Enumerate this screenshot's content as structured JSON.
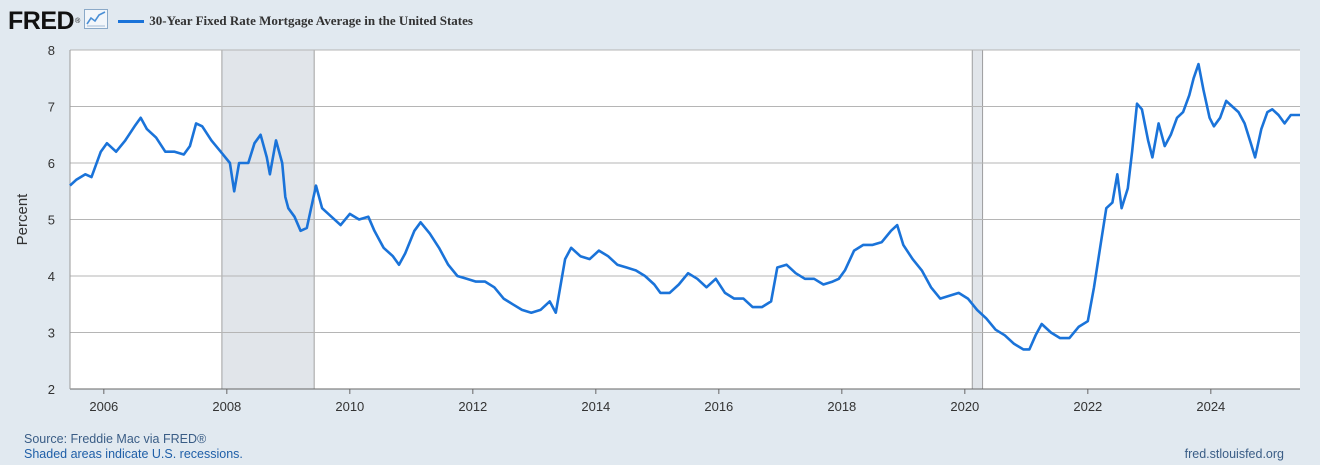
{
  "header": {
    "logo": "FRED",
    "logo_mark": "®",
    "logo_icon": "line-chart-icon"
  },
  "footer": {
    "source": "Source: Freddie Mac via FRED®",
    "recession_note": "Shaded areas indicate U.S. recessions.",
    "site": "fred.stlouisfed.org"
  },
  "colors": {
    "background": "#e1e9f0",
    "plot_bg": "#ffffff",
    "series": "#1a73d9",
    "recession": "#e1e5ea",
    "grid": "#b5b5b5"
  },
  "chart_data": {
    "type": "line",
    "title": "",
    "xlabel": "",
    "ylabel": "Percent",
    "xlim": [
      2005.45,
      2025.45
    ],
    "ylim": [
      2,
      8
    ],
    "y_ticks": [
      2,
      3,
      4,
      5,
      6,
      7,
      8
    ],
    "x_ticks": [
      "2006",
      "2008",
      "2010",
      "2012",
      "2014",
      "2016",
      "2018",
      "2020",
      "2022",
      "2024"
    ],
    "grid": "horizontal",
    "recessions": [
      [
        2007.92,
        2009.42
      ],
      [
        2020.12,
        2020.29
      ]
    ],
    "series": [
      {
        "name": "30-Year Fixed Rate Mortgage Average in the United States",
        "points": [
          [
            2005.45,
            5.6
          ],
          [
            2005.55,
            5.7
          ],
          [
            2005.7,
            5.8
          ],
          [
            2005.8,
            5.75
          ],
          [
            2005.95,
            6.2
          ],
          [
            2006.05,
            6.35
          ],
          [
            2006.2,
            6.2
          ],
          [
            2006.35,
            6.4
          ],
          [
            2006.5,
            6.65
          ],
          [
            2006.6,
            6.8
          ],
          [
            2006.7,
            6.6
          ],
          [
            2006.85,
            6.45
          ],
          [
            2007.0,
            6.2
          ],
          [
            2007.15,
            6.2
          ],
          [
            2007.3,
            6.15
          ],
          [
            2007.4,
            6.3
          ],
          [
            2007.5,
            6.7
          ],
          [
            2007.6,
            6.65
          ],
          [
            2007.75,
            6.4
          ],
          [
            2007.9,
            6.2
          ],
          [
            2008.05,
            6.0
          ],
          [
            2008.12,
            5.5
          ],
          [
            2008.2,
            6.0
          ],
          [
            2008.35,
            6.0
          ],
          [
            2008.45,
            6.35
          ],
          [
            2008.55,
            6.5
          ],
          [
            2008.65,
            6.1
          ],
          [
            2008.7,
            5.8
          ],
          [
            2008.8,
            6.4
          ],
          [
            2008.9,
            6.0
          ],
          [
            2008.95,
            5.4
          ],
          [
            2009.0,
            5.2
          ],
          [
            2009.1,
            5.05
          ],
          [
            2009.2,
            4.8
          ],
          [
            2009.3,
            4.85
          ],
          [
            2009.45,
            5.6
          ],
          [
            2009.55,
            5.2
          ],
          [
            2009.7,
            5.05
          ],
          [
            2009.85,
            4.9
          ],
          [
            2010.0,
            5.1
          ],
          [
            2010.15,
            5.0
          ],
          [
            2010.3,
            5.05
          ],
          [
            2010.4,
            4.8
          ],
          [
            2010.55,
            4.5
          ],
          [
            2010.7,
            4.35
          ],
          [
            2010.8,
            4.2
          ],
          [
            2010.9,
            4.4
          ],
          [
            2011.05,
            4.8
          ],
          [
            2011.15,
            4.95
          ],
          [
            2011.3,
            4.75
          ],
          [
            2011.45,
            4.5
          ],
          [
            2011.6,
            4.2
          ],
          [
            2011.75,
            4.0
          ],
          [
            2011.9,
            3.95
          ],
          [
            2012.05,
            3.9
          ],
          [
            2012.2,
            3.9
          ],
          [
            2012.35,
            3.8
          ],
          [
            2012.5,
            3.6
          ],
          [
            2012.65,
            3.5
          ],
          [
            2012.8,
            3.4
          ],
          [
            2012.95,
            3.35
          ],
          [
            2013.1,
            3.4
          ],
          [
            2013.25,
            3.55
          ],
          [
            2013.35,
            3.35
          ],
          [
            2013.5,
            4.3
          ],
          [
            2013.6,
            4.5
          ],
          [
            2013.75,
            4.35
          ],
          [
            2013.9,
            4.3
          ],
          [
            2014.05,
            4.45
          ],
          [
            2014.2,
            4.35
          ],
          [
            2014.35,
            4.2
          ],
          [
            2014.5,
            4.15
          ],
          [
            2014.65,
            4.1
          ],
          [
            2014.8,
            4.0
          ],
          [
            2014.95,
            3.85
          ],
          [
            2015.05,
            3.7
          ],
          [
            2015.2,
            3.7
          ],
          [
            2015.35,
            3.85
          ],
          [
            2015.5,
            4.05
          ],
          [
            2015.65,
            3.95
          ],
          [
            2015.8,
            3.8
          ],
          [
            2015.95,
            3.95
          ],
          [
            2016.1,
            3.7
          ],
          [
            2016.25,
            3.6
          ],
          [
            2016.4,
            3.6
          ],
          [
            2016.55,
            3.45
          ],
          [
            2016.7,
            3.45
          ],
          [
            2016.85,
            3.55
          ],
          [
            2016.95,
            4.15
          ],
          [
            2017.1,
            4.2
          ],
          [
            2017.25,
            4.05
          ],
          [
            2017.4,
            3.95
          ],
          [
            2017.55,
            3.95
          ],
          [
            2017.7,
            3.85
          ],
          [
            2017.85,
            3.9
          ],
          [
            2017.95,
            3.95
          ],
          [
            2018.05,
            4.1
          ],
          [
            2018.2,
            4.45
          ],
          [
            2018.35,
            4.55
          ],
          [
            2018.5,
            4.55
          ],
          [
            2018.65,
            4.6
          ],
          [
            2018.8,
            4.8
          ],
          [
            2018.9,
            4.9
          ],
          [
            2019.0,
            4.55
          ],
          [
            2019.15,
            4.3
          ],
          [
            2019.3,
            4.1
          ],
          [
            2019.45,
            3.8
          ],
          [
            2019.6,
            3.6
          ],
          [
            2019.75,
            3.65
          ],
          [
            2019.9,
            3.7
          ],
          [
            2020.05,
            3.6
          ],
          [
            2020.2,
            3.4
          ],
          [
            2020.35,
            3.25
          ],
          [
            2020.5,
            3.05
          ],
          [
            2020.65,
            2.95
          ],
          [
            2020.8,
            2.8
          ],
          [
            2020.95,
            2.7
          ],
          [
            2021.05,
            2.7
          ],
          [
            2021.15,
            2.95
          ],
          [
            2021.25,
            3.15
          ],
          [
            2021.4,
            3.0
          ],
          [
            2021.55,
            2.9
          ],
          [
            2021.7,
            2.9
          ],
          [
            2021.85,
            3.1
          ],
          [
            2022.0,
            3.2
          ],
          [
            2022.1,
            3.8
          ],
          [
            2022.2,
            4.5
          ],
          [
            2022.3,
            5.2
          ],
          [
            2022.4,
            5.3
          ],
          [
            2022.48,
            5.8
          ],
          [
            2022.55,
            5.2
          ],
          [
            2022.65,
            5.55
          ],
          [
            2022.72,
            6.2
          ],
          [
            2022.8,
            7.05
          ],
          [
            2022.88,
            6.95
          ],
          [
            2022.98,
            6.4
          ],
          [
            2023.05,
            6.1
          ],
          [
            2023.15,
            6.7
          ],
          [
            2023.25,
            6.3
          ],
          [
            2023.35,
            6.5
          ],
          [
            2023.45,
            6.8
          ],
          [
            2023.55,
            6.9
          ],
          [
            2023.65,
            7.2
          ],
          [
            2023.72,
            7.5
          ],
          [
            2023.8,
            7.75
          ],
          [
            2023.88,
            7.3
          ],
          [
            2023.98,
            6.8
          ],
          [
            2024.05,
            6.65
          ],
          [
            2024.15,
            6.8
          ],
          [
            2024.25,
            7.1
          ],
          [
            2024.35,
            7.0
          ],
          [
            2024.45,
            6.9
          ],
          [
            2024.55,
            6.7
          ],
          [
            2024.65,
            6.35
          ],
          [
            2024.72,
            6.1
          ],
          [
            2024.82,
            6.6
          ],
          [
            2024.92,
            6.9
          ],
          [
            2025.0,
            6.95
          ],
          [
            2025.1,
            6.85
          ],
          [
            2025.2,
            6.7
          ],
          [
            2025.3,
            6.85
          ],
          [
            2025.45,
            6.85
          ]
        ]
      }
    ]
  }
}
